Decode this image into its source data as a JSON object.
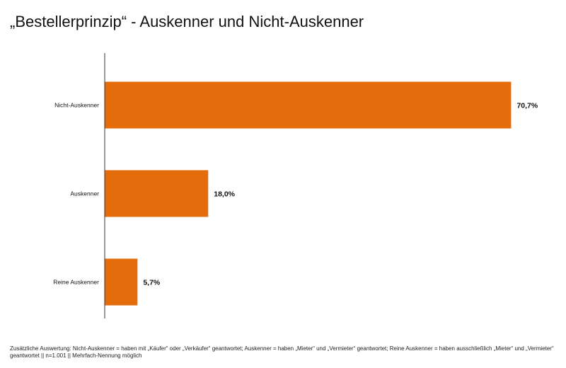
{
  "chart_data": {
    "type": "bar",
    "orientation": "horizontal",
    "title": "„Bestellerprinzip“ - Auskenner und Nicht-Auskenner",
    "categories": [
      "Nicht-Auskenner",
      "Auskenner",
      "Reine  Auskenner"
    ],
    "values": [
      70.7,
      18.0,
      5.7
    ],
    "data_labels": [
      "70,7%",
      "18,0%",
      "5,7%"
    ],
    "unit": "%",
    "xlim": [
      0,
      80
    ],
    "grid": false,
    "bar_color": "#E46C0A"
  },
  "footnote": "Zusätzliche Auswertung: Nicht-Auskenner  = haben mit „Käufer“ oder „Verkäufer“ geantwortet; Auskenner = haben „Mieter“ und „Vermieter“ geantwortet; Reine Auskenner = haben ausschließlich „Mieter“ und „Vermieter“ geantwortet || n=1.001 || Mehrfach-Nennung  möglich"
}
